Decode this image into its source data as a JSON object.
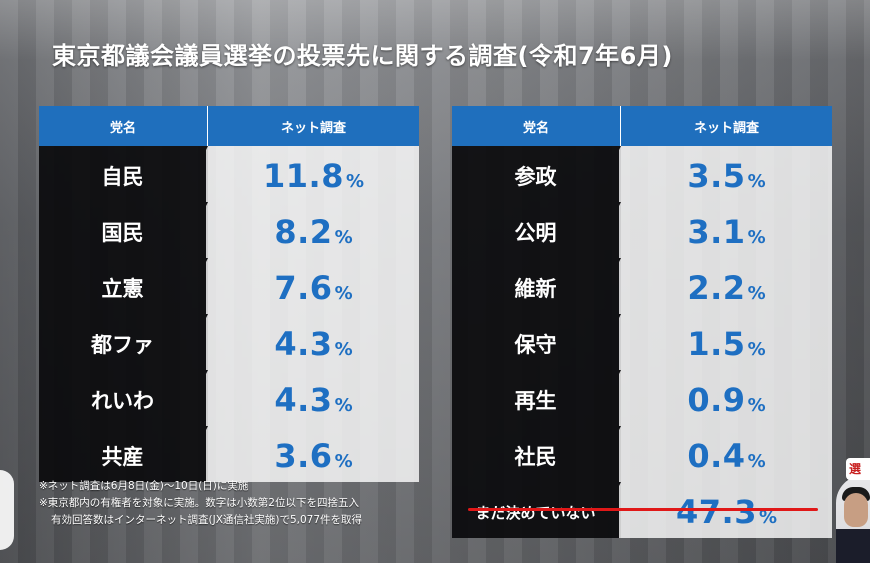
{
  "title": "東京都議会議員選挙の投票先に関する調査(令和7年6月)",
  "headers": {
    "party": "党名",
    "survey": "ネット調査"
  },
  "percent_sign": "%",
  "chart_data": {
    "type": "table",
    "title": "東京都議会議員選挙の投票先に関する調査(令和7年6月)",
    "columns": [
      "党名",
      "ネット調査"
    ],
    "unit": "%",
    "rows": [
      {
        "party": "自民",
        "value": "11.8"
      },
      {
        "party": "国民",
        "value": "8.2"
      },
      {
        "party": "立憲",
        "value": "7.6"
      },
      {
        "party": "都ファ",
        "value": "4.3"
      },
      {
        "party": "れいわ",
        "value": "4.3"
      },
      {
        "party": "共産",
        "value": "3.6"
      },
      {
        "party": "参政",
        "value": "3.5"
      },
      {
        "party": "公明",
        "value": "3.1"
      },
      {
        "party": "維新",
        "value": "2.2"
      },
      {
        "party": "保守",
        "value": "1.5"
      },
      {
        "party": "再生",
        "value": "0.9"
      },
      {
        "party": "社民",
        "value": "0.4"
      },
      {
        "party": "まだ決めていない",
        "value": "47.3"
      }
    ]
  },
  "notes": [
    "※ネット調査は6月8日(金)～10日(日)に実施",
    "※東京都内の有権者を対象に実施。数字は小数第2位以下を四捨五入",
    "有効回答数はインターネット調査(JX通信社実施)で5,077件を取得"
  ],
  "logo_text": "選挙"
}
